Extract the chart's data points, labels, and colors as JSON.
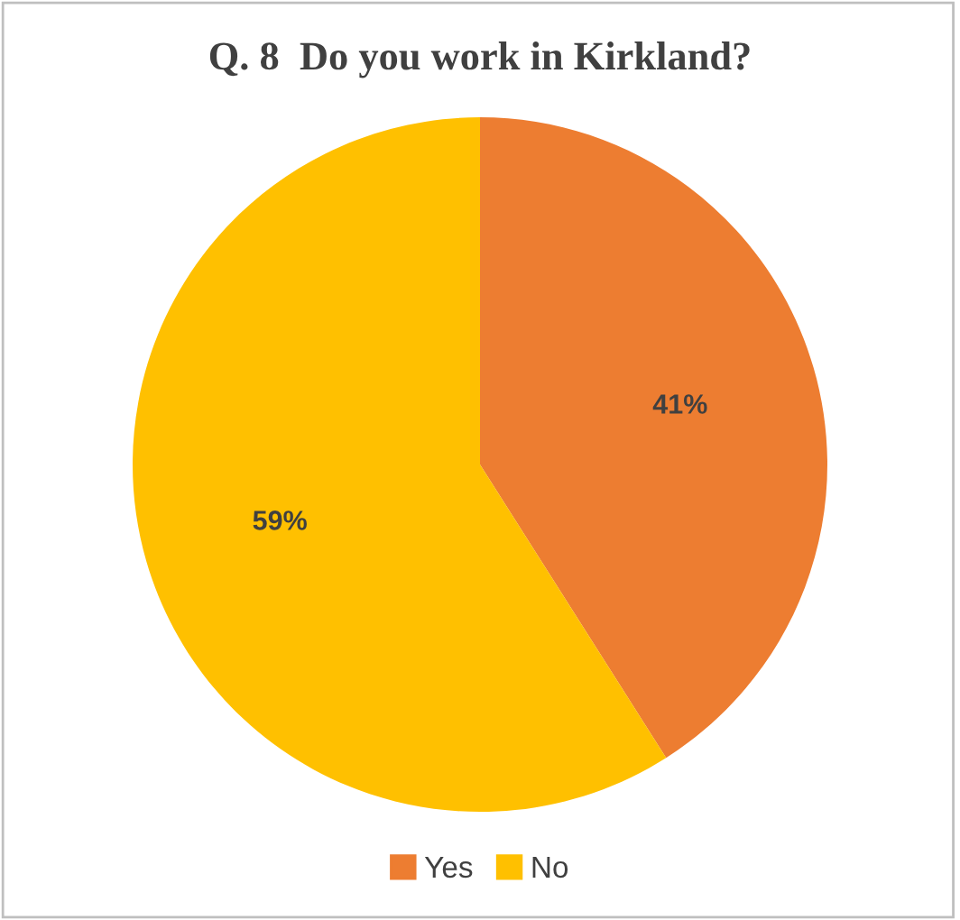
{
  "chart_data": {
    "type": "pie",
    "title": "Q. 8  Do you work in Kirkland?",
    "categories": [
      "Yes",
      "No"
    ],
    "values": [
      41,
      59
    ],
    "colors": [
      "#ed7d31",
      "#ffc000"
    ],
    "value_labels": [
      "41%",
      "59%"
    ],
    "legend": "bottom"
  }
}
